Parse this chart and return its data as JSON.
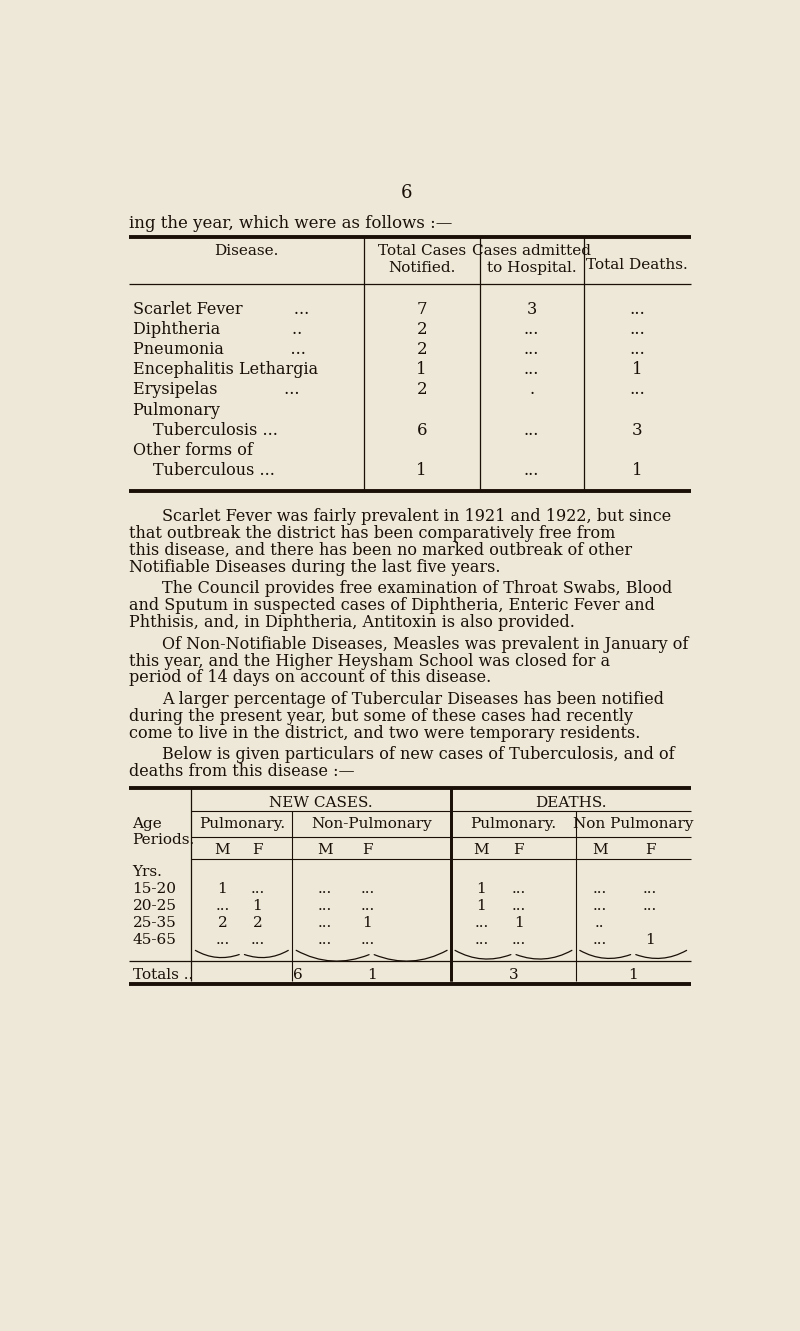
{
  "bg_color": "#ede8d8",
  "text_color": "#1a1008",
  "page_number": "6",
  "intro_text": "ing the year, which were as follows :—",
  "table1_headers": [
    "Disease.",
    "Total Cases\nNotified.",
    "Cases admitted\nto Hospital.",
    "Total Deaths."
  ],
  "table1_rows": [
    [
      "Scarlet Fever          ...",
      "7",
      "3",
      "..."
    ],
    [
      "Diphtheria              ..",
      "2",
      "...",
      "..."
    ],
    [
      "Pneumonia             ...",
      "2",
      "...",
      "..."
    ],
    [
      "Encephalitis Lethargia",
      "1",
      "...",
      "1"
    ],
    [
      "Erysipelas             ...",
      "2",
      ".",
      "..."
    ],
    [
      "Pulmonary",
      "",
      "",
      ""
    ],
    [
      "    Tuberculosis ...",
      "6",
      "...",
      "3"
    ],
    [
      "Other forms of",
      "",
      "",
      ""
    ],
    [
      "    Tuberculous ...",
      "1",
      "...",
      "1"
    ]
  ],
  "paragraph1": "Scarlet Fever was fairly prevalent in 1921 and 1922, but since that outbreak the district has been comparatively free from this disease,  and there has been no marked outbreak of other Notifiable Diseases during the last five years.",
  "paragraph2": "The Council provides free examination of Throat Swabs, Blood and Sputum in suspected cases of Diphtheria, Enteric Fever and Phthisis,  and,  in  Diphtheria,  Antitoxin is also provided.",
  "paragraph3": "Of Non-Notifiable Diseases, Measles was prevalent in January of this year, and the Higher Heysham School was closed for a period of 14 days on account of this disease.",
  "paragraph4": "A larger percentage of Tubercular Diseases has been notified during the present year,   but some of these cases had recently come to live in the district, and two were temporary residents.",
  "paragraph5": "Below is given particulars of new cases of Tuberculosis, and of deaths from this disease :—",
  "table2_section_headers": [
    "NEW CASES.",
    "DEATHS."
  ],
  "table2_sub_headers": [
    "Pulmonary.",
    "Non-Pulmonary",
    "Pulmonary.",
    "Non Pulmonary"
  ],
  "table2_mf_headers": [
    "M",
    "F",
    "M",
    "F",
    "M",
    "F",
    "M",
    "F"
  ],
  "table2_age_label": "Age\nPeriods.",
  "table2_rows": [
    [
      "Yrs.",
      "",
      "",
      "",
      "",
      "",
      "",
      "",
      ""
    ],
    [
      "15-20",
      "1",
      "...",
      "...",
      "...",
      "1",
      "...",
      "...",
      "..."
    ],
    [
      "20-25",
      "...",
      "1",
      "...",
      "...",
      "1",
      "...",
      "...",
      "..."
    ],
    [
      "25-35",
      "2",
      "2",
      "...",
      "1",
      "...",
      "1",
      "..",
      ""
    ],
    [
      "45-65",
      "...",
      "...",
      "...",
      "...",
      "...",
      "...",
      "...",
      "1"
    ]
  ],
  "table2_totals": [
    "Totals ..",
    "6",
    "1",
    "3",
    "1"
  ]
}
